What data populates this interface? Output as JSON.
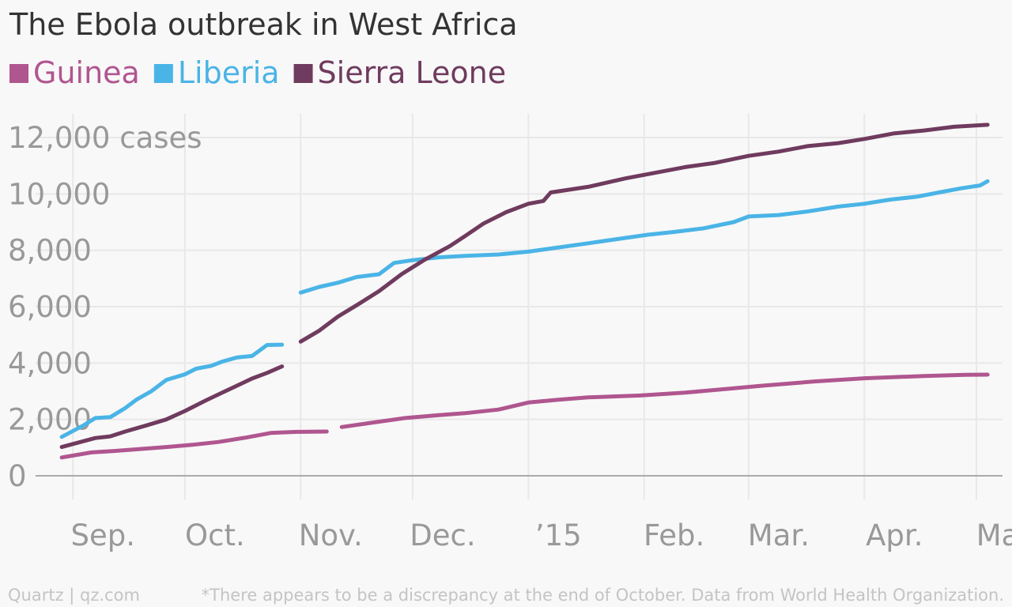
{
  "chart_data": {
    "type": "line",
    "title": "The Ebola outbreak in West Africa",
    "y_unit_label": "cases",
    "ylim": [
      0,
      12000
    ],
    "y_ticks": [
      0,
      2000,
      4000,
      6000,
      8000,
      10000,
      12000
    ],
    "y_tick_labels": [
      "0",
      "2,000",
      "4,000",
      "6,000",
      "8,000",
      "10,000",
      "12,000"
    ],
    "xlim": [
      "2014-08-22",
      "2015-05-08"
    ],
    "x_ticks": [
      {
        "date": "2014-09-01",
        "label": "Sep."
      },
      {
        "date": "2014-10-01",
        "label": "Oct."
      },
      {
        "date": "2014-11-01",
        "label": "Nov."
      },
      {
        "date": "2014-12-01",
        "label": "Dec."
      },
      {
        "date": "2015-01-01",
        "label": "’15"
      },
      {
        "date": "2015-02-01",
        "label": "Feb."
      },
      {
        "date": "2015-03-01",
        "label": "Mar."
      },
      {
        "date": "2015-04-01",
        "label": "Apr."
      },
      {
        "date": "2015-05-01",
        "label": "May"
      }
    ],
    "grid": true,
    "legend_position": "top-left",
    "series": [
      {
        "name": "Guinea",
        "color": "#b0568f",
        "segments": [
          [
            [
              "2014-08-29",
              650
            ],
            [
              "2014-09-06",
              830
            ],
            [
              "2014-09-12",
              880
            ],
            [
              "2014-09-19",
              950
            ],
            [
              "2014-09-26",
              1020
            ],
            [
              "2014-10-03",
              1100
            ],
            [
              "2014-10-10",
              1200
            ],
            [
              "2014-10-17",
              1350
            ],
            [
              "2014-10-24",
              1520
            ],
            [
              "2014-10-31",
              1560
            ],
            [
              "2014-11-08",
              1570
            ]
          ],
          [
            [
              "2014-11-12",
              1730
            ],
            [
              "2014-11-20",
              1880
            ],
            [
              "2014-11-29",
              2050
            ],
            [
              "2014-12-08",
              2150
            ],
            [
              "2014-12-15",
              2220
            ],
            [
              "2014-12-24",
              2350
            ],
            [
              "2015-01-01",
              2600
            ],
            [
              "2015-01-09",
              2700
            ],
            [
              "2015-01-17",
              2780
            ],
            [
              "2015-01-31",
              2850
            ],
            [
              "2015-02-12",
              2950
            ],
            [
              "2015-02-23",
              3080
            ],
            [
              "2015-03-05",
              3200
            ],
            [
              "2015-03-19",
              3350
            ],
            [
              "2015-04-01",
              3460
            ],
            [
              "2015-04-17",
              3540
            ],
            [
              "2015-04-28",
              3580
            ],
            [
              "2015-05-04",
              3590
            ]
          ]
        ]
      },
      {
        "name": "Liberia",
        "color": "#4ab4e6",
        "segments": [
          [
            [
              "2014-08-29",
              1380
            ],
            [
              "2014-09-04",
              1800
            ],
            [
              "2014-09-07",
              2050
            ],
            [
              "2014-09-11",
              2080
            ],
            [
              "2014-09-15",
              2400
            ],
            [
              "2014-09-18",
              2700
            ],
            [
              "2014-09-22",
              3000
            ],
            [
              "2014-09-26",
              3400
            ],
            [
              "2014-10-01",
              3600
            ],
            [
              "2014-10-04",
              3800
            ],
            [
              "2014-10-08",
              3900
            ],
            [
              "2014-10-11",
              4050
            ],
            [
              "2014-10-15",
              4200
            ],
            [
              "2014-10-19",
              4250
            ],
            [
              "2014-10-23",
              4640
            ],
            [
              "2014-10-27",
              4650
            ]
          ],
          [
            [
              "2014-11-01",
              6500
            ],
            [
              "2014-11-06",
              6700
            ],
            [
              "2014-11-11",
              6850
            ],
            [
              "2014-11-16",
              7050
            ],
            [
              "2014-11-22",
              7150
            ],
            [
              "2014-11-26",
              7550
            ],
            [
              "2014-12-01",
              7650
            ],
            [
              "2014-12-08",
              7750
            ],
            [
              "2014-12-15",
              7800
            ],
            [
              "2014-12-24",
              7850
            ],
            [
              "2015-01-01",
              7950
            ],
            [
              "2015-01-09",
              8100
            ],
            [
              "2015-01-17",
              8250
            ],
            [
              "2015-01-25",
              8400
            ],
            [
              "2015-02-02",
              8550
            ],
            [
              "2015-02-09",
              8650
            ],
            [
              "2015-02-17",
              8780
            ],
            [
              "2015-02-25",
              9000
            ],
            [
              "2015-03-01",
              9200
            ],
            [
              "2015-03-09",
              9250
            ],
            [
              "2015-03-17",
              9380
            ],
            [
              "2015-03-25",
              9550
            ],
            [
              "2015-04-01",
              9650
            ],
            [
              "2015-04-08",
              9800
            ],
            [
              "2015-04-15",
              9900
            ],
            [
              "2015-04-21",
              10050
            ],
            [
              "2015-04-27",
              10200
            ],
            [
              "2015-05-02",
              10300
            ],
            [
              "2015-05-04",
              10450
            ]
          ]
        ]
      },
      {
        "name": "Sierra Leone",
        "color": "#6f3b5e",
        "segments": [
          [
            [
              "2014-08-29",
              1020
            ],
            [
              "2014-09-07",
              1340
            ],
            [
              "2014-09-11",
              1400
            ],
            [
              "2014-09-15",
              1570
            ],
            [
              "2014-09-21",
              1800
            ],
            [
              "2014-09-26",
              2000
            ],
            [
              "2014-10-01",
              2300
            ],
            [
              "2014-10-07",
              2700
            ],
            [
              "2014-10-11",
              2950
            ],
            [
              "2014-10-15",
              3200
            ],
            [
              "2014-10-19",
              3450
            ],
            [
              "2014-10-23",
              3650
            ],
            [
              "2014-10-27",
              3880
            ]
          ],
          [
            [
              "2014-11-01",
              4760
            ],
            [
              "2014-11-06",
              5150
            ],
            [
              "2014-11-11",
              5650
            ],
            [
              "2014-11-16",
              6050
            ],
            [
              "2014-11-22",
              6550
            ],
            [
              "2014-11-28",
              7150
            ],
            [
              "2014-12-04",
              7650
            ],
            [
              "2014-12-11",
              8150
            ],
            [
              "2014-12-15",
              8500
            ],
            [
              "2014-12-20",
              8950
            ],
            [
              "2014-12-26",
              9350
            ],
            [
              "2015-01-01",
              9650
            ],
            [
              "2015-01-05",
              9750
            ],
            [
              "2015-01-07",
              10050
            ],
            [
              "2015-01-17",
              10250
            ],
            [
              "2015-01-27",
              10550
            ],
            [
              "2015-02-04",
              10750
            ],
            [
              "2015-02-12",
              10950
            ],
            [
              "2015-02-20",
              11100
            ],
            [
              "2015-03-01",
              11350
            ],
            [
              "2015-03-09",
              11500
            ],
            [
              "2015-03-17",
              11700
            ],
            [
              "2015-03-25",
              11800
            ],
            [
              "2015-04-01",
              11950
            ],
            [
              "2015-04-09",
              12150
            ],
            [
              "2015-04-17",
              12250
            ],
            [
              "2015-04-25",
              12380
            ],
            [
              "2015-05-04",
              12450
            ]
          ]
        ]
      }
    ]
  },
  "source_text": "Quartz | qz.com",
  "note_text": "*There appears to be a discrepancy at the end of October. Data from World Health Organization."
}
